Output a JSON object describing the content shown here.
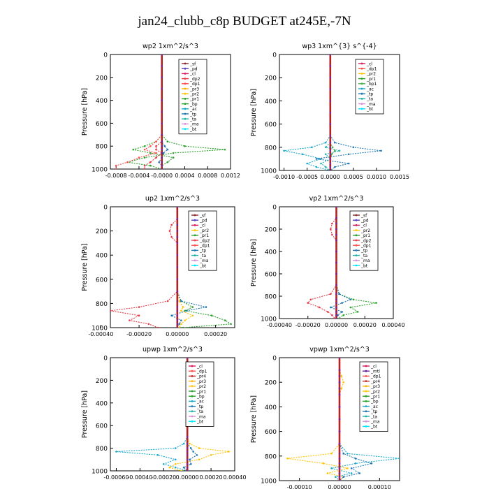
{
  "page_title": "jan24_clubb_c8p  BUDGET at245E,-7N",
  "colors": {
    "_sf": "#8a2b2b",
    "_pd": "#5a3fbf",
    "_cl": "#d81b60",
    "_dp2": "#e63946",
    "_dp1": "#ff4d4d",
    "_pr3": "#ffb000",
    "_pr2": "#ffc400",
    "_pr1": "#2ca02c",
    "_bp": "#2ca02c",
    "_ac": "#19a8c9",
    "_tp": "#1f77b4",
    "_ta": "#20b2aa",
    "_ma": "#d88fd8",
    "_bt": "#00e5ff",
    "_bp1": "#4caf50",
    "_mtl": "#6a1b9a",
    "_pr4": "#c62828",
    "_dp": "#e53935",
    "_pr": "#ff9800"
  },
  "chart_data": [
    {
      "type": "line",
      "title": "wp2   1xm^2/s^3",
      "ylabel": "Pressure  [hPa]",
      "xlim": [
        -0.0009,
        0.0012
      ],
      "ylim": [
        1000,
        0
      ],
      "x_ticks": [
        "-0.0008",
        "-0.0004",
        "-0.0000",
        "0.0004",
        "0.0008",
        "0.0012"
      ],
      "x_tick_values": [
        -0.0008,
        -0.0004,
        0.0,
        0.0004,
        0.0008,
        0.0012
      ],
      "y_ticks": [
        "0",
        "200",
        "400",
        "600",
        "800",
        "1000"
      ],
      "legend": [
        "_sf",
        "_pd",
        "_cl",
        "_dp2",
        "_dp1",
        "_pr3",
        "_pr2",
        "_pr1",
        "_bp",
        "_ac",
        "_tp",
        "_ta",
        "_ma",
        "_bt"
      ],
      "pressure": [
        0,
        100,
        200,
        300,
        400,
        500,
        600,
        700,
        760,
        800,
        830,
        860,
        900,
        940,
        970,
        1000
      ],
      "series": [
        {
          "name": "_pr1",
          "values": [
            0,
            0,
            0,
            0,
            0,
            0,
            0,
            0,
            0.0001,
            0.0004,
            0.0011,
            0.0002,
            -0.0003,
            -0.0006,
            -0.0002,
            0
          ]
        },
        {
          "name": "_bp",
          "values": [
            0,
            0,
            0,
            0,
            0,
            0,
            0,
            0,
            -0.0001,
            -0.0003,
            -0.0005,
            -0.0002,
            0.0002,
            0.0001,
            0,
            0
          ]
        },
        {
          "name": "_dp1",
          "values": [
            0,
            0,
            0,
            0,
            0,
            0,
            0,
            0,
            -0.0001,
            -0.0002,
            -0.0003,
            -0.0001,
            -0.0004,
            -0.0006,
            -0.0008,
            -0.0008
          ]
        },
        {
          "name": "_dp2",
          "values": [
            0,
            0,
            0,
            0,
            0,
            0,
            0,
            0,
            0,
            -0.0001,
            -0.0001,
            0,
            -0.0001,
            -0.0002,
            -0.0003,
            -0.0003
          ]
        },
        {
          "name": "_tp",
          "values": [
            0,
            0,
            0,
            0,
            0,
            0,
            0,
            0,
            0,
            5e-05,
            0.0001,
            3e-05,
            0,
            -5e-05,
            0,
            0
          ]
        },
        {
          "name": "_cl",
          "values": [
            0,
            0,
            0,
            0,
            0,
            0,
            0,
            0,
            0,
            0,
            0,
            0,
            0,
            0,
            0,
            0
          ]
        }
      ]
    },
    {
      "type": "line",
      "title": "wp3   1xm^{3} s^{-4}",
      "ylabel": "Pressure  [hPa]",
      "xlim": [
        -0.0011,
        0.0015
      ],
      "ylim": [
        1000,
        0
      ],
      "x_ticks": [
        "-0.0010",
        "-0.0005",
        "0.0000",
        "0.0005",
        "0.0010",
        "0.0015"
      ],
      "x_tick_values": [
        -0.001,
        -0.0005,
        0.0,
        0.0005,
        0.001,
        0.0015
      ],
      "y_ticks": [
        "0",
        "200",
        "400",
        "600",
        "800",
        "1000"
      ],
      "legend": [
        "_cl",
        "_dp1",
        "_pr2",
        "_pr1",
        "_bp1",
        "_ac",
        "_tp",
        "_ta",
        "_ma",
        "_bt"
      ],
      "pressure": [
        0,
        100,
        200,
        300,
        400,
        500,
        600,
        700,
        760,
        800,
        830,
        860,
        900,
        940,
        970,
        1000
      ],
      "series": [
        {
          "name": "_ac",
          "values": [
            0,
            0,
            0,
            0,
            0,
            0,
            0,
            0,
            -0.0001,
            -0.0004,
            -0.001,
            -0.0006,
            -0.0002,
            -0.0005,
            -0.0003,
            0
          ]
        },
        {
          "name": "_tp",
          "values": [
            0,
            0,
            0,
            0,
            0,
            0,
            0,
            0,
            0.0001,
            0.0005,
            0.0011,
            0.0004,
            -0.0003,
            0.0004,
            0.0001,
            0
          ]
        },
        {
          "name": "_ta",
          "values": [
            0,
            0,
            0,
            0,
            0,
            0,
            0,
            0,
            0,
            -0.0001,
            0.0002,
            -0.0001,
            0,
            -0.0002,
            -0.0001,
            0
          ]
        },
        {
          "name": "_bp1",
          "values": [
            0,
            0,
            0,
            0,
            0,
            0,
            0,
            0,
            0,
            5e-05,
            0.0001,
            3e-05,
            0,
            0,
            0,
            0
          ]
        },
        {
          "name": "_cl",
          "values": [
            0,
            0,
            0,
            0,
            0,
            0,
            0,
            0,
            0,
            0,
            0,
            0,
            0,
            0,
            0,
            0
          ]
        }
      ]
    },
    {
      "type": "line",
      "title": "up2   1xm^2/s^3",
      "ylabel": "Pressure  [hPa]",
      "xlim": [
        -0.00035,
        0.0003
      ],
      "ylim": [
        1000,
        0
      ],
      "x_ticks": [
        "-0.00040",
        "-0.00020",
        "0.00000",
        "0.00020"
      ],
      "x_tick_values": [
        -0.0004,
        -0.0002,
        0.0,
        0.0002
      ],
      "y_ticks": [
        "0",
        "200",
        "400",
        "600",
        "800",
        "1000"
      ],
      "legend": [
        "_sf",
        "_pd",
        "_cl",
        "_pr2",
        "_pr1",
        "_dp2",
        "_dp1",
        "_tp",
        "_ta",
        "_ma",
        "_bt"
      ],
      "pressure": [
        0,
        100,
        150,
        200,
        250,
        300,
        400,
        500,
        600,
        700,
        780,
        830,
        860,
        900,
        940,
        970,
        1000
      ],
      "series": [
        {
          "name": "_dp2",
          "values": [
            0,
            0,
            -3e-05,
            -4e-05,
            -3e-05,
            0,
            0,
            0,
            0,
            0,
            -5e-05,
            -0.0002,
            -0.00035,
            -0.0002,
            -0.00025,
            -0.00015,
            -0.0001
          ]
        },
        {
          "name": "_pr1",
          "values": [
            0,
            0,
            0,
            0,
            0,
            0,
            0,
            0,
            0,
            0,
            2e-05,
            8e-05,
            4e-05,
            0.00018,
            0.00025,
            0.00028,
            3e-05
          ]
        },
        {
          "name": "_pr2",
          "values": [
            0,
            0,
            0,
            0,
            0,
            0,
            0,
            0,
            0,
            0,
            1e-05,
            3e-05,
            2e-05,
            8e-05,
            4e-05,
            2e-05,
            1e-05
          ]
        },
        {
          "name": "_tp",
          "values": [
            0,
            0,
            0,
            0,
            0,
            0,
            0,
            0,
            0,
            0,
            2e-05,
            0.00015,
            5e-05,
            -3e-05,
            2e-05,
            1e-05,
            0
          ]
        },
        {
          "name": "_sf",
          "values": [
            0,
            0,
            0,
            0,
            0,
            0,
            0,
            0,
            0,
            0,
            0,
            0,
            0,
            0,
            0,
            0,
            0
          ]
        }
      ]
    },
    {
      "type": "line",
      "title": "vp2   1xm^2/s^3",
      "ylabel": "Pressure  [hPa]",
      "xlim": [
        -0.0004,
        0.0004
      ],
      "ylim": [
        1000,
        0
      ],
      "x_ticks": [
        "-0.00040",
        "-0.00020",
        "0.00000",
        "0.00020",
        "0.00040"
      ],
      "x_tick_values": [
        -0.0004,
        -0.0002,
        0.0,
        0.0002,
        0.0004
      ],
      "y_ticks": [
        "0",
        "200",
        "400",
        "600",
        "800",
        "1000"
      ],
      "legend": [
        "_sf",
        "_pd",
        "_cl",
        "_pr2",
        "_pr1",
        "_dp2",
        "_dp1",
        "_tp",
        "_ta",
        "_ma",
        "_bt"
      ],
      "pressure": [
        0,
        100,
        150,
        200,
        250,
        300,
        400,
        500,
        600,
        700,
        780,
        830,
        860,
        900,
        940,
        970,
        1000
      ],
      "series": [
        {
          "name": "_dp2",
          "values": [
            0,
            0,
            -3e-05,
            -4e-05,
            -3e-05,
            0,
            0,
            0,
            0,
            0,
            -4e-05,
            -0.00018,
            -0.0002,
            -0.00012,
            -6e-05,
            -3e-05,
            -1e-05
          ]
        },
        {
          "name": "_pr1",
          "values": [
            0,
            0,
            0,
            0,
            0,
            0,
            0,
            0,
            0,
            0,
            2e-05,
            0.00012,
            0.00028,
            0.0001,
            0.00015,
            5e-05,
            1e-05
          ]
        },
        {
          "name": "_tp",
          "values": [
            0,
            0,
            0,
            0,
            0,
            0,
            0,
            0,
            0,
            0,
            2e-05,
            0.0001,
            4e-05,
            -4e-05,
            4e-05,
            1e-05,
            0
          ]
        },
        {
          "name": "_sf",
          "values": [
            0,
            0,
            0,
            0,
            0,
            0,
            0,
            0,
            0,
            0,
            0,
            0,
            0,
            0,
            0,
            0,
            0
          ]
        }
      ]
    },
    {
      "type": "line",
      "title": "upwp   1xm^2/s^3",
      "ylabel": "Pressure  [hPa]",
      "xlim": [
        -0.00065,
        0.0004
      ],
      "ylim": [
        1000,
        0
      ],
      "x_ticks": [
        "-0.00060",
        "-0.00040",
        "-0.00020",
        "0.00000",
        "0.00020",
        "0.00040"
      ],
      "x_tick_values": [
        -0.0006,
        -0.0004,
        -0.0002,
        0.0,
        0.0002,
        0.0004
      ],
      "y_ticks": [
        "0",
        "200",
        "400",
        "600",
        "800",
        "1000"
      ],
      "legend": [
        "_cl",
        "_dp1",
        "_pr4",
        "_pr3",
        "_pr2",
        "_pr1",
        "_bp",
        "_ac",
        "_tp",
        "_ta",
        "_ma",
        "_bt"
      ],
      "pressure": [
        0,
        100,
        200,
        300,
        400,
        500,
        600,
        700,
        760,
        800,
        830,
        860,
        900,
        940,
        970,
        1000
      ],
      "series": [
        {
          "name": "_ac",
          "values": [
            0,
            0,
            0,
            0,
            0,
            0,
            0,
            0,
            -3e-05,
            -0.0001,
            -0.0006,
            -0.00025,
            -0.0001,
            -0.0002,
            -0.0001,
            0
          ]
        },
        {
          "name": "_pr2",
          "values": [
            0,
            0,
            0,
            0,
            0,
            0,
            0,
            0,
            2e-05,
            0.0001,
            0.00035,
            0.0002,
            0.0001,
            -0.0001,
            -0.00015,
            -5e-05
          ]
        },
        {
          "name": "_tp",
          "values": [
            0,
            0,
            0,
            0,
            0,
            0,
            0,
            0,
            0,
            3e-05,
            5e-05,
            8e-05,
            2e-05,
            3e-05,
            -3e-05,
            0
          ]
        },
        {
          "name": "_dp1",
          "values": [
            0,
            0,
            0,
            0,
            0,
            0,
            0,
            0,
            0,
            0,
            0,
            0,
            0,
            0,
            0,
            0
          ]
        }
      ]
    },
    {
      "type": "line",
      "title": "vpwp   1xm^2/s^3",
      "ylabel": "Pressure  [hPa]",
      "xlim": [
        -0.00015,
        0.00015
      ],
      "ylim": [
        1000,
        0
      ],
      "x_ticks": [
        "-0.00010",
        "0.00000",
        "0.00010"
      ],
      "x_tick_values": [
        -0.0001,
        0.0,
        0.0001
      ],
      "y_ticks": [
        "0",
        "200",
        "400",
        "600",
        "800",
        "1000"
      ],
      "legend": [
        "_cl",
        "_mtl",
        "_dp1",
        "_pr4",
        "_pr3",
        "_pr2",
        "_pr1",
        "_bp",
        "_ac",
        "_tp",
        "_ta",
        "_ma",
        "_bt"
      ],
      "pressure": [
        0,
        100,
        150,
        200,
        250,
        300,
        400,
        500,
        600,
        700,
        780,
        820,
        860,
        900,
        940,
        970,
        1000
      ],
      "series": [
        {
          "name": "_pr2",
          "values": [
            0,
            0,
            5e-06,
            1e-05,
            5e-06,
            0,
            0,
            0,
            0,
            0,
            -2e-05,
            -0.00013,
            -4e-05,
            2e-05,
            -3e-05,
            1e-05,
            0
          ]
        },
        {
          "name": "_ac",
          "values": [
            0,
            0,
            0,
            0,
            0,
            0,
            0,
            0,
            0,
            0,
            2e-05,
            0.00015,
            4e-05,
            -2e-05,
            3e-05,
            -1e-05,
            0
          ]
        },
        {
          "name": "_tp",
          "values": [
            0,
            0,
            0,
            0,
            0,
            0,
            0,
            0,
            0,
            0,
            1e-05,
            4e-05,
            8e-05,
            3e-05,
            5e-05,
            1e-05,
            0
          ]
        },
        {
          "name": "_cl",
          "values": [
            0,
            0,
            0,
            0,
            0,
            0,
            0,
            0,
            0,
            0,
            0,
            0,
            0,
            0,
            0,
            0,
            0
          ]
        }
      ]
    }
  ]
}
